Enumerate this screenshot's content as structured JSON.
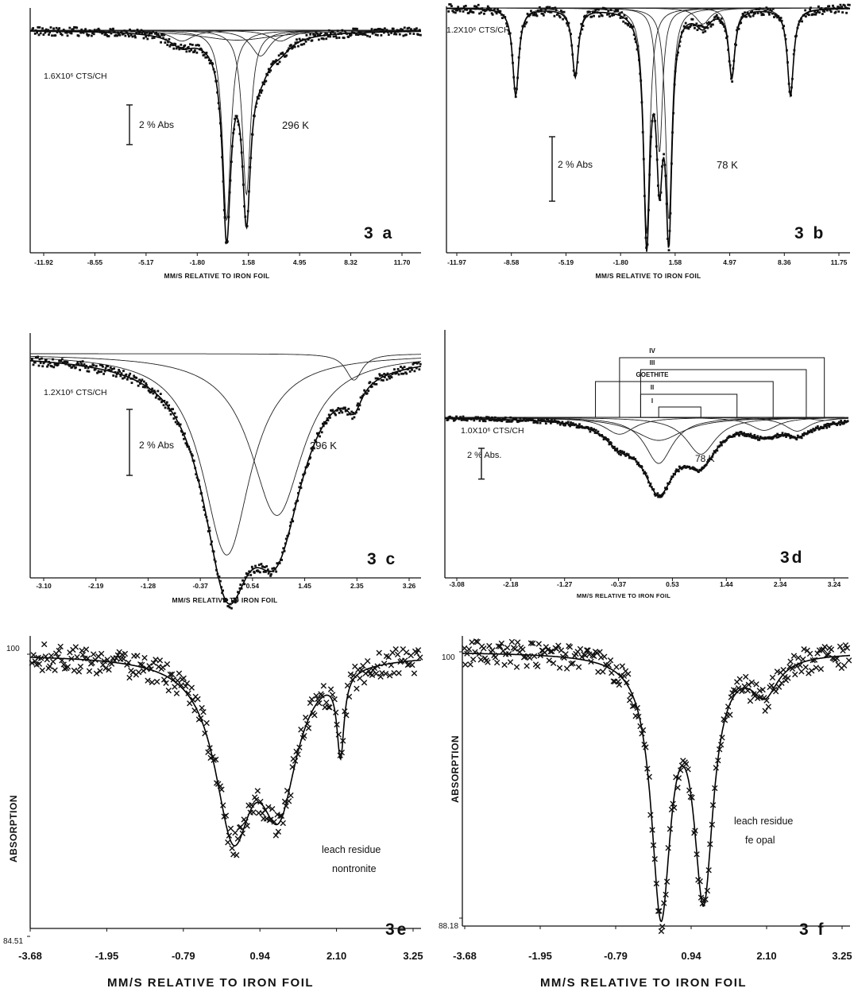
{
  "chart_data": [
    {
      "id": "a",
      "type": "scatter",
      "panel_label": "3 a",
      "xlabel": "MM/S RELATIVE TO IRON FOIL",
      "counts_label": "1.6X10⁶ CTS/CH",
      "scale_label": "2 % Abs",
      "scale_value_percent": 2,
      "temperature": "296 K",
      "x_ticks": [
        "-11.92",
        "-8.55",
        "-5.17",
        "-1.80",
        "1.58",
        "4.95",
        "8.32",
        "11.70"
      ],
      "xlim": [
        -11.92,
        11.7
      ],
      "ylim_percent_abs": [
        -0.4,
        10.9
      ],
      "components": [
        {
          "center": -2.75,
          "depth": 0.55,
          "hwhm": 0.8
        },
        {
          "center": -0.05,
          "depth": 9.6,
          "hwhm": 0.3
        },
        {
          "center": 1.15,
          "depth": 8.3,
          "hwhm": 0.3
        },
        {
          "center": 2.0,
          "depth": 1.3,
          "hwhm": 0.7
        },
        {
          "center": 3.2,
          "depth": 0.55,
          "hwhm": 0.8
        },
        {
          "center": 0.6,
          "depth": 0.5,
          "hwhm": 2.8
        }
      ]
    },
    {
      "id": "b",
      "type": "scatter",
      "panel_label": "3 b",
      "xlabel": "MM/S RELATIVE TO IRON FOIL",
      "counts_label": "1.2X10⁶ CTS/CH",
      "scale_label": "2 % Abs",
      "scale_value_percent": 2,
      "temperature": "78 K",
      "x_ticks": [
        "-11.97",
        "-8.58",
        "-5.19",
        "-1.80",
        "1.58",
        "4.97",
        "8.36",
        "11.75"
      ],
      "xlim": [
        -11.97,
        11.75
      ],
      "ylim_percent_abs": [
        -0.2,
        7.4
      ],
      "components": [
        {
          "center": -7.9,
          "depth": 2.7,
          "hwhm": 0.22
        },
        {
          "center": -4.4,
          "depth": 2.1,
          "hwhm": 0.22
        },
        {
          "center": -0.2,
          "depth": 7.0,
          "hwhm": 0.22
        },
        {
          "center": 0.55,
          "depth": 4.5,
          "hwhm": 0.22
        },
        {
          "center": 1.1,
          "depth": 6.6,
          "hwhm": 0.22
        },
        {
          "center": 3.1,
          "depth": 0.5,
          "hwhm": 0.5
        },
        {
          "center": 4.8,
          "depth": 2.1,
          "hwhm": 0.22
        },
        {
          "center": 8.25,
          "depth": 2.7,
          "hwhm": 0.22
        }
      ]
    },
    {
      "id": "c",
      "type": "scatter",
      "panel_label": "3 c",
      "xlabel": "MM/S RELATIVE TO IRON FOIL",
      "counts_label": "1.2X10⁶ CTS/CH",
      "scale_label": "2 % Abs",
      "scale_value_percent": 2,
      "temperature": "296 K",
      "x_ticks": [
        "-3.10",
        "-2.19",
        "-1.28",
        "-0.37",
        "0.54",
        "1.45",
        "2.35",
        "3.26"
      ],
      "xlim": [
        -3.35,
        3.35
      ],
      "ylim_percent_abs": [
        -0.3,
        6.6
      ],
      "components": [
        {
          "center": 0.02,
          "depth": 6.1,
          "hwhm": 0.5
        },
        {
          "center": 0.88,
          "depth": 4.9,
          "hwhm": 0.55
        },
        {
          "center": 2.2,
          "depth": 0.8,
          "hwhm": 0.17
        }
      ]
    },
    {
      "id": "d",
      "type": "scatter",
      "panel_label": "3d",
      "xlabel": "MM/S RELATIVE TO IRON FOIL",
      "counts_label": "1.0X10⁶ CTS/CH",
      "scale_label": "2 % Abs.",
      "scale_value_percent": 2,
      "temperature": "78 K",
      "site_labels": [
        "IV",
        "III",
        "GOETHITE",
        "II",
        "I"
      ],
      "x_ticks": [
        "-3.08",
        "-2.18",
        "-1.27",
        "-0.37",
        "0.53",
        "1.44",
        "2.34",
        "3.24"
      ],
      "xlim": [
        -3.35,
        3.35
      ],
      "ylim_percent_abs": [
        -10.0,
        7.5
      ],
      "components": [
        {
          "center": 0.2,
          "depth": 3.0,
          "hwhm": 0.28
        },
        {
          "center": 0.9,
          "depth": 2.4,
          "hwhm": 0.3
        },
        {
          "center": -0.45,
          "depth": 1.1,
          "hwhm": 0.3
        },
        {
          "center": 0.2,
          "depth": 1.5,
          "hwhm": 0.5
        },
        {
          "center": 1.95,
          "depth": 0.85,
          "hwhm": 0.28
        },
        {
          "center": 2.5,
          "depth": 0.9,
          "hwhm": 0.25
        },
        {
          "center": 2.95,
          "depth": 0.2,
          "hwhm": 0.25
        }
      ]
    },
    {
      "id": "e",
      "type": "scatter",
      "panel_label": "3e",
      "xlabel": "MM/S RELATIVE TO IRON FOIL",
      "ylabel": "ABSORPTION",
      "y_ticks": [
        "100",
        "84.51"
      ],
      "ylim": [
        84.51,
        100
      ],
      "annotation": [
        "leach residue",
        "nontronite"
      ],
      "x_ticks": [
        "-3.68",
        "-1.95",
        "-0.79",
        "0.94",
        "2.10",
        "3.25"
      ],
      "xlim": [
        -3.68,
        3.6
      ],
      "components": [
        {
          "center": 0.1,
          "depth": 9.0,
          "hwhm": 0.42
        },
        {
          "center": 0.95,
          "depth": 7.5,
          "hwhm": 0.42
        },
        {
          "center": 2.1,
          "depth": 4.5,
          "hwhm": 0.08
        }
      ]
    },
    {
      "id": "f",
      "type": "scatter",
      "panel_label": "3 f",
      "xlabel": "MM/S RELATIVE TO IRON FOIL",
      "ylabel": "ABSORPTION",
      "y_ticks": [
        "100",
        "88.18"
      ],
      "ylim": [
        88.18,
        100
      ],
      "annotation": [
        "leach residue",
        "fe opal"
      ],
      "x_ticks": [
        "-3.68",
        "-1.95",
        "-0.79",
        "0.94",
        "2.10",
        "3.25"
      ],
      "xlim": [
        -3.68,
        3.6
      ],
      "components": [
        {
          "center": 0.05,
          "depth": 11.2,
          "hwhm": 0.22
        },
        {
          "center": 0.85,
          "depth": 10.4,
          "hwhm": 0.22
        },
        {
          "center": 2.0,
          "depth": 1.6,
          "hwhm": 0.3
        }
      ]
    }
  ]
}
